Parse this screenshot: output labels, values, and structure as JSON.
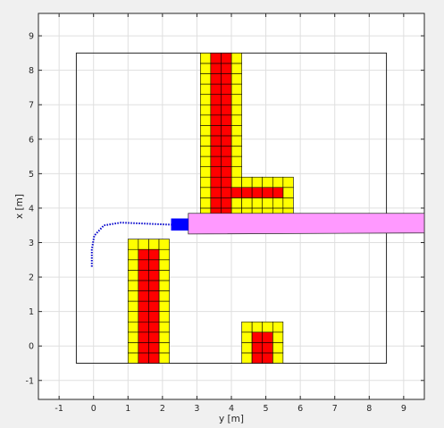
{
  "chart_data": {
    "type": "scatter",
    "title": "",
    "xlabel": "y [m]",
    "ylabel": "x [m]",
    "xlim": [
      -1.6,
      9.6
    ],
    "ylim": [
      -1.55,
      9.65
    ],
    "x_ticks": [
      -1,
      0,
      1,
      2,
      3,
      4,
      5,
      6,
      7,
      8,
      9
    ],
    "y_ticks": [
      -1,
      0,
      1,
      2,
      3,
      4,
      5,
      6,
      7,
      8,
      9
    ],
    "grid": true,
    "cell_size": 0.3,
    "boundary": {
      "y_min": -0.5,
      "y_max": 8.5,
      "x_min": -0.5,
      "x_max": 8.5
    },
    "obstacle_cells": [
      {
        "y": 1.0,
        "x": -0.5,
        "cols": 4,
        "rows": 12,
        "color": "#ffff00",
        "zone": "inflation"
      },
      {
        "y": 1.3,
        "x": -0.5,
        "cols": 2,
        "rows": 11,
        "color": "#ff0000",
        "zone": "obstacle"
      },
      {
        "y": 3.1,
        "x": 3.7,
        "cols": 4,
        "rows": 16,
        "color": "#ffff00",
        "zone": "inflation"
      },
      {
        "y": 3.4,
        "x": 3.7,
        "cols": 2,
        "rows": 16,
        "color": "#ff0000",
        "zone": "obstacle"
      },
      {
        "y": 4.3,
        "x": 3.4,
        "cols": 5,
        "rows": 5,
        "color": "#ffff00",
        "zone": "inflation"
      },
      {
        "y": 4.0,
        "x": 4.3,
        "cols": 5,
        "rows": 1,
        "color": "#ff0000",
        "zone": "obstacle"
      },
      {
        "y": 4.3,
        "x": -0.5,
        "cols": 4,
        "rows": 4,
        "color": "#ffff00",
        "zone": "inflation"
      },
      {
        "y": 4.6,
        "x": -0.5,
        "cols": 2,
        "rows": 3,
        "color": "#ff0000",
        "zone": "obstacle"
      }
    ],
    "corridor": {
      "points": [
        [
          2.75,
          3.85
        ],
        [
          9.6,
          3.85
        ],
        [
          9.6,
          3.28
        ],
        [
          2.75,
          3.25
        ]
      ],
      "color": "#ff99ff"
    },
    "vehicle": {
      "y_min": 2.25,
      "y_max": 2.75,
      "x_min": 3.35,
      "x_max": 3.7,
      "color": "#0000ff"
    },
    "trajectory": {
      "color": "#0000cc",
      "points": [
        [
          -0.05,
          2.3
        ],
        [
          -0.05,
          2.8
        ],
        [
          0.02,
          3.2
        ],
        [
          0.3,
          3.5
        ],
        [
          0.8,
          3.58
        ],
        [
          1.5,
          3.55
        ],
        [
          2.25,
          3.52
        ]
      ]
    }
  }
}
